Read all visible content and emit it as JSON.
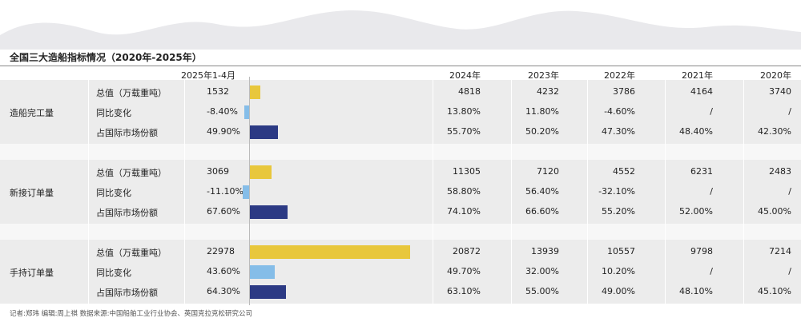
{
  "title": "全国三大造船指标情况（2020年-2025年）",
  "colors": {
    "total": "#e8c73c",
    "yoy": "#85bde8",
    "share": "#2c3a84"
  },
  "headers": {
    "current": "2025年1-4月",
    "years": [
      "2024年",
      "2023年",
      "2022年",
      "2021年",
      "2020年"
    ]
  },
  "groups": [
    {
      "name": "造船完工量",
      "rows": [
        {
          "metric": "总值（万载重吨）",
          "current": "1532",
          "years": [
            "4818",
            "4232",
            "3786",
            "4164",
            "3740"
          ]
        },
        {
          "metric": "同比变化",
          "current": "-8.40%",
          "years": [
            "13.80%",
            "11.80%",
            "-4.60%",
            "/",
            "/"
          ]
        },
        {
          "metric": "占国际市场份额",
          "current": "49.90%",
          "years": [
            "55.70%",
            "50.20%",
            "47.30%",
            "48.40%",
            "42.30%"
          ]
        }
      ]
    },
    {
      "name": "新接订单量",
      "rows": [
        {
          "metric": "总值（万载重吨）",
          "current": "3069",
          "years": [
            "11305",
            "7120",
            "4552",
            "6231",
            "2483"
          ]
        },
        {
          "metric": "同比变化",
          "current": "-11.10%",
          "years": [
            "58.80%",
            "56.40%",
            "-32.10%",
            "/",
            "/"
          ]
        },
        {
          "metric": "占国际市场份额",
          "current": "67.60%",
          "years": [
            "74.10%",
            "66.60%",
            "55.20%",
            "52.00%",
            "45.00%"
          ]
        }
      ]
    },
    {
      "name": "手持订单量",
      "rows": [
        {
          "metric": "总值（万载重吨）",
          "current": "22978",
          "years": [
            "20872",
            "13939",
            "10557",
            "9798",
            "7214"
          ]
        },
        {
          "metric": "同比变化",
          "current": "43.60%",
          "years": [
            "49.70%",
            "32.00%",
            "10.20%",
            "/",
            "/"
          ]
        },
        {
          "metric": "占国际市场份额",
          "current": "64.30%",
          "years": [
            "63.10%",
            "55.00%",
            "49.00%",
            "48.10%",
            "45.10%"
          ]
        }
      ]
    }
  ],
  "chart_data": {
    "type": "bar",
    "orientation": "horizontal",
    "x_category": "2025年1-4月",
    "categories": [
      "造船完工量",
      "新接订单量",
      "手持订单量"
    ],
    "series": [
      {
        "name": "总值（万载重吨）",
        "values": [
          1532,
          3069,
          22978
        ]
      },
      {
        "name": "同比变化",
        "values": [
          -8.4,
          -11.1,
          43.6
        ]
      },
      {
        "name": "占国际市场份额",
        "values": [
          49.9,
          67.6,
          64.3
        ]
      }
    ]
  },
  "footer": "记者:郑玮  编辑:周上祺  数据来源:中国船舶工业行业协会、英国克拉克松研究公司"
}
